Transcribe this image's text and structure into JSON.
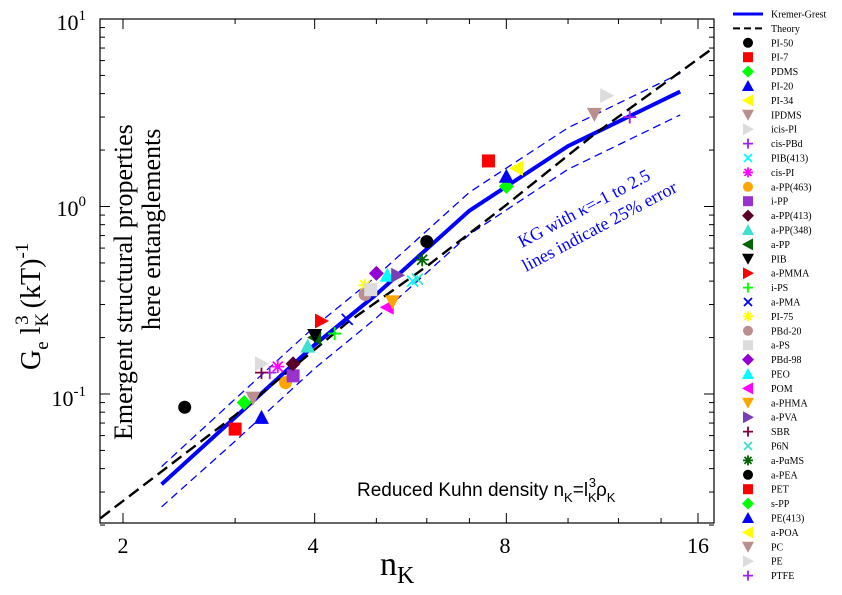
{
  "chart_data": {
    "type": "scatter",
    "x_scale": "log2",
    "y_scale": "log10",
    "xlim": [
      1.75,
      16.8
    ],
    "ylim": [
      0.02,
      10
    ],
    "x_ticks": [
      2,
      4,
      8,
      16
    ],
    "x_tick_labels": [
      "2",
      "4",
      "8",
      "16"
    ],
    "y_ticks": [
      0.1,
      1,
      10
    ],
    "y_tick_labels": [
      {
        "base": "10",
        "exp": "-1"
      },
      {
        "base": "10",
        "exp": "0"
      },
      {
        "base": "10",
        "exp": "1"
      }
    ],
    "xlabel": {
      "main": "n",
      "sub": "K"
    },
    "ylabel": {
      "p1": "G",
      "p2": "e",
      "p3": " l",
      "p4": "K",
      "p5": "3",
      "p6": " (kT)",
      "p7": "-1"
    },
    "annotations": {
      "left_line1": "Emergent structural properties",
      "left_line2": "here entanglements",
      "kg_line1": "KG with κ=-1 to 2.5",
      "kg_line2": "lines indicate 25% error",
      "density": {
        "t1": "Reduced Kuhn density n",
        "s1": "K",
        "t2": "=l",
        "s2": "K",
        "p1": "3",
        "t3": "ρ",
        "s3": "K"
      }
    },
    "grid": false,
    "legend_position": "right-outside",
    "lines": [
      {
        "name": "Kremer-Grest",
        "color": "#0000ff",
        "dash": "solid",
        "x": [
          2.3,
          3.0,
          4.0,
          5.0,
          7.0,
          10.0,
          15.0
        ],
        "y": [
          0.033,
          0.075,
          0.183,
          0.34,
          0.95,
          2.1,
          4.1
        ]
      },
      {
        "name": "Theory",
        "color": "#000000",
        "dash": "long-dash",
        "x": [
          1.75,
          3.0,
          4.5,
          6.0,
          8.0,
          11.0,
          16.8
        ],
        "y": [
          0.019,
          0.077,
          0.24,
          0.48,
          1.02,
          2.43,
          6.9
        ]
      }
    ],
    "error_bands": [
      {
        "color": "#0000ff",
        "x": [
          2.3,
          3.0,
          4.0,
          5.0,
          7.0,
          10.0,
          15.0
        ],
        "y": [
          0.041,
          0.094,
          0.229,
          0.425,
          1.19,
          2.63,
          5.13
        ]
      },
      {
        "color": "#0000ff",
        "x": [
          2.3,
          3.0,
          4.0,
          5.0,
          7.0,
          10.0,
          15.0
        ],
        "y": [
          0.025,
          0.056,
          0.137,
          0.255,
          0.71,
          1.58,
          3.08
        ]
      }
    ],
    "series": [
      {
        "name": "PI-50",
        "marker": "circle",
        "color": "#000000",
        "x": [
          2.5
        ],
        "y": [
          0.085
        ]
      },
      {
        "name": "PI-7",
        "marker": "square",
        "color": "#ff0000",
        "x": [
          3.0
        ],
        "y": [
          0.065
        ]
      },
      {
        "name": "PDMS",
        "marker": "diamond",
        "color": "#00ff00",
        "x": [
          3.1
        ],
        "y": [
          0.09
        ]
      },
      {
        "name": "PI-20",
        "marker": "triangle-up",
        "color": "#0000ff",
        "x": [
          3.3
        ],
        "y": [
          0.075
        ]
      },
      {
        "name": "PI-34",
        "marker": "triangle-left",
        "color": "#ffff00",
        "x": [
          8.3
        ],
        "y": [
          1.6
        ]
      },
      {
        "name": "IPDMS",
        "marker": "triangle-down",
        "color": "#bc8f8f",
        "x": [
          11.0
        ],
        "y": [
          3.1
        ]
      },
      {
        "name": "icis-PI",
        "marker": "triangle-right",
        "color": "#dcdcdc",
        "x": [
          11.5
        ],
        "y": [
          3.9
        ]
      },
      {
        "name": "cis-PBd",
        "marker": "plus",
        "color": "#a020f0",
        "x": [
          3.4
        ],
        "y": [
          0.13
        ]
      },
      {
        "name": "PIB(413)",
        "marker": "x",
        "color": "#00ffff",
        "x": [
          5.7
        ],
        "y": [
          0.4
        ]
      },
      {
        "name": "cis-PI",
        "marker": "star",
        "color": "#ff00ff",
        "x": [
          3.5
        ],
        "y": [
          0.14
        ]
      },
      {
        "name": "a-PP(463)",
        "marker": "circle",
        "color": "#ffa500",
        "x": [
          3.6
        ],
        "y": [
          0.115
        ]
      },
      {
        "name": "i-PP",
        "marker": "square",
        "color": "#9932cc",
        "x": [
          3.7
        ],
        "y": [
          0.125
        ]
      },
      {
        "name": "a-PP(413)",
        "marker": "diamond",
        "color": "#5a0028",
        "x": [
          3.7
        ],
        "y": [
          0.145
        ]
      },
      {
        "name": "a-PP(348)",
        "marker": "triangle-up",
        "color": "#40e0d0",
        "x": [
          3.9
        ],
        "y": [
          0.18
        ]
      },
      {
        "name": "a-PP",
        "marker": "triangle-left",
        "color": "#006400",
        "x": [
          4.0
        ],
        "y": [
          0.2
        ]
      },
      {
        "name": "PIB",
        "marker": "triangle-down",
        "color": "#000000",
        "x": [
          4.0
        ],
        "y": [
          0.205
        ]
      },
      {
        "name": "a-PMMA",
        "marker": "triangle-right",
        "color": "#ff0000",
        "x": [
          4.1
        ],
        "y": [
          0.245
        ]
      },
      {
        "name": "i-PS",
        "marker": "plus",
        "color": "#00ff00",
        "x": [
          4.3
        ],
        "y": [
          0.21
        ]
      },
      {
        "name": "a-PMA",
        "marker": "x",
        "color": "#0000ff",
        "x": [
          4.5
        ],
        "y": [
          0.25
        ]
      },
      {
        "name": "PI-75",
        "marker": "star",
        "color": "#ffff00",
        "x": [
          4.8
        ],
        "y": [
          0.38
        ]
      },
      {
        "name": "PBd-20",
        "marker": "circle",
        "color": "#bc8f8f",
        "x": [
          4.8
        ],
        "y": [
          0.34
        ]
      },
      {
        "name": "a-PS",
        "marker": "square",
        "color": "#dcdcdc",
        "x": [
          4.9
        ],
        "y": [
          0.36
        ]
      },
      {
        "name": "PBd-98",
        "marker": "diamond",
        "color": "#9400d3",
        "x": [
          5.0
        ],
        "y": [
          0.44
        ]
      },
      {
        "name": "PEO",
        "marker": "triangle-up",
        "color": "#00ffff",
        "x": [
          5.2
        ],
        "y": [
          0.43
        ]
      },
      {
        "name": "POM",
        "marker": "triangle-left",
        "color": "#ff00ff",
        "x": [
          5.2
        ],
        "y": [
          0.29
        ]
      },
      {
        "name": "a-PHMA",
        "marker": "triangle-down",
        "color": "#ffa500",
        "x": [
          5.3
        ],
        "y": [
          0.31
        ]
      },
      {
        "name": "a-PVA",
        "marker": "triangle-right",
        "color": "#7b3fb5",
        "x": [
          5.4
        ],
        "y": [
          0.43
        ]
      },
      {
        "name": "SBR",
        "marker": "plus",
        "color": "#800040",
        "x": [
          3.3
        ],
        "y": [
          0.13
        ]
      },
      {
        "name": "P6N",
        "marker": "x",
        "color": "#40e0d0",
        "x": [
          5.8
        ],
        "y": [
          0.41
        ]
      },
      {
        "name": "a-PαMS",
        "marker": "star",
        "color": "#006400",
        "x": [
          5.9
        ],
        "y": [
          0.52
        ]
      },
      {
        "name": "a-PEA",
        "marker": "circle",
        "color": "#000000",
        "x": [
          6.0
        ],
        "y": [
          0.65
        ]
      },
      {
        "name": "PET",
        "marker": "square",
        "color": "#ff0000",
        "x": [
          7.5
        ],
        "y": [
          1.75
        ]
      },
      {
        "name": "s-PP",
        "marker": "diamond",
        "color": "#00ff00",
        "x": [
          8.0
        ],
        "y": [
          1.28
        ]
      },
      {
        "name": "PE(413)",
        "marker": "triangle-up",
        "color": "#0000ff",
        "x": [
          8.0
        ],
        "y": [
          1.45
        ]
      },
      {
        "name": "a-POA",
        "marker": "triangle-left",
        "color": "#ffff00",
        "x": [
          8.3
        ],
        "y": [
          1.6
        ]
      },
      {
        "name": "PC",
        "marker": "triangle-down",
        "color": "#bc8f8f",
        "x": [
          3.2
        ],
        "y": [
          0.095
        ]
      },
      {
        "name": "PE",
        "marker": "triangle-right",
        "color": "#dcdcdc",
        "x": [
          3.3
        ],
        "y": [
          0.145
        ]
      },
      {
        "name": "PTFE",
        "marker": "plus",
        "color": "#a020f0",
        "x": [
          12.5
        ],
        "y": [
          3.0
        ]
      }
    ]
  }
}
